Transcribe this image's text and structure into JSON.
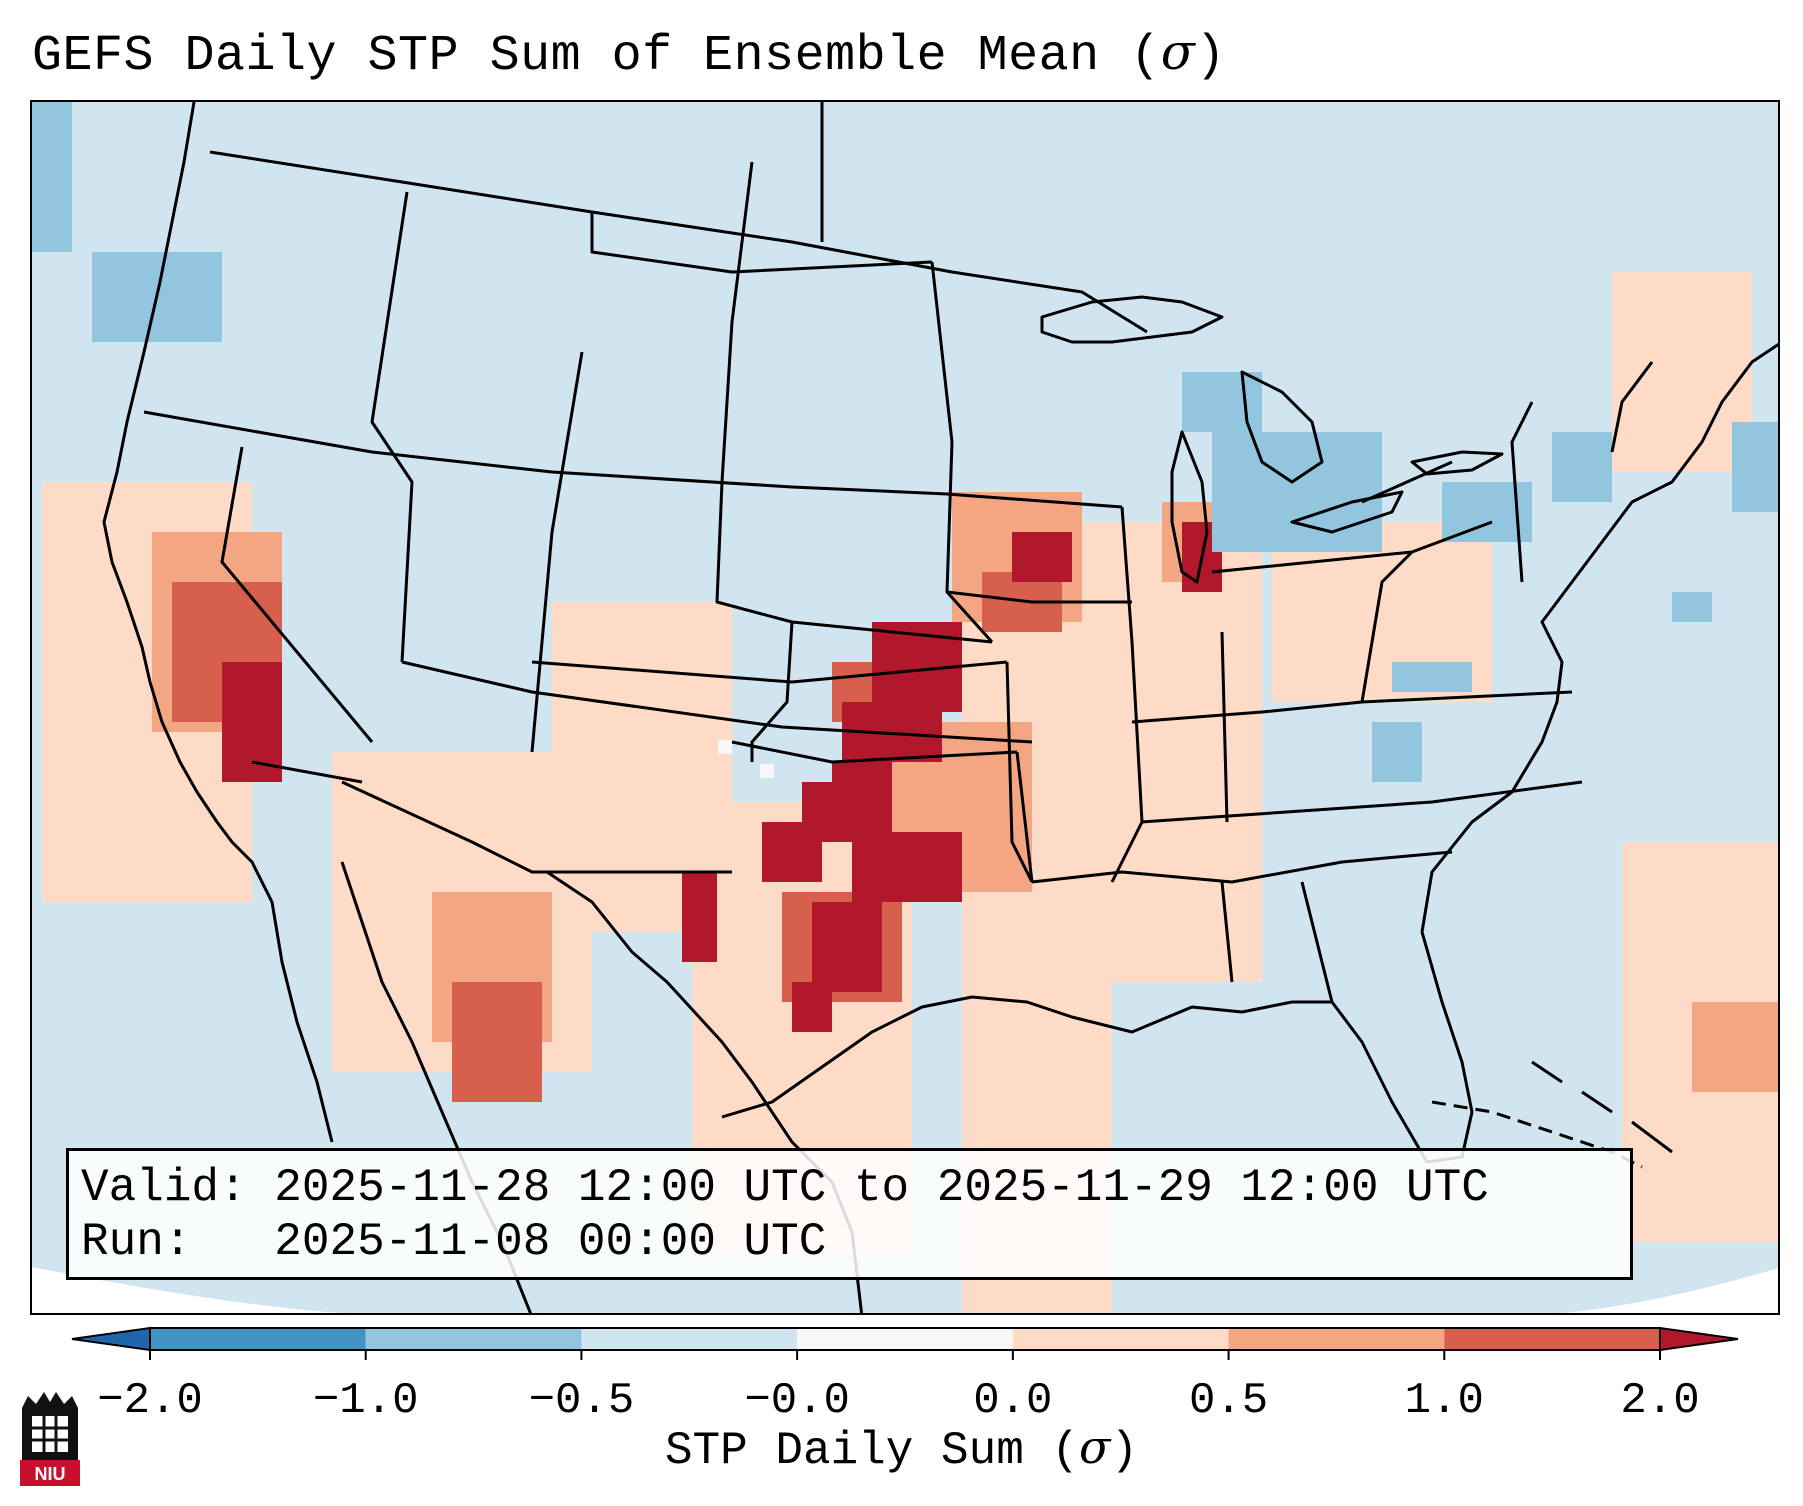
{
  "title": {
    "prefix": "GEFS Daily STP Sum of Ensemble Mean (",
    "sigma": "σ",
    "suffix": ")"
  },
  "info": {
    "valid_label": "Valid:",
    "valid_value": "2025-11-28 12:00 UTC to 2025-11-29 12:00 UTC",
    "run_label": "Run:",
    "run_value": "2025-11-08 00:00 UTC"
  },
  "colors": {
    "background_mean": "#d1e5f0",
    "neg_2_1": "#4393c3",
    "neg_1_05": "#92c5de",
    "neg_05_0": "#d1e5f0",
    "zero": "#f7f7f7",
    "pos_0_05": "#fddbc7",
    "pos_05_1": "#f4a582",
    "pos_1_2": "#d6604d",
    "over_2": "#b2182b",
    "under_neg2": "#2166ac"
  },
  "colorbar": {
    "ticks": [
      "−2.0",
      "−1.0",
      "−0.5",
      "−0.0",
      "0.0",
      "0.5",
      "1.0",
      "2.0"
    ],
    "label_prefix": "STP Daily Sum (",
    "label_sigma": "σ",
    "label_suffix": ")"
  },
  "logo": {
    "name": "niu-icon",
    "text": "NIU"
  },
  "map_regions": [
    {
      "name": "southern-plains-high",
      "category": "over_2"
    },
    {
      "name": "iowa-high",
      "category": "over_2"
    },
    {
      "name": "lake-michigan-high",
      "category": "over_2"
    },
    {
      "name": "california-high",
      "category": "over_2"
    },
    {
      "name": "new-mexico-high",
      "category": "over_2"
    },
    {
      "name": "great-lakes-low",
      "category": "neg_1_05"
    },
    {
      "name": "pacific-northwest-low",
      "category": "neg_1_05"
    },
    {
      "name": "northeast-low",
      "category": "neg_1_05"
    }
  ]
}
